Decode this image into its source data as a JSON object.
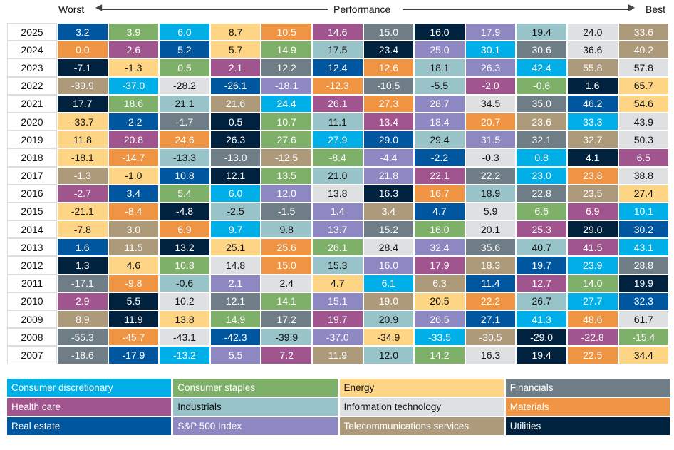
{
  "header": {
    "worst": "Worst",
    "performance": "Performance",
    "best": "Best"
  },
  "legend": [
    {
      "key": "CD",
      "label": "Consumer discretionary",
      "color": "#00aee8",
      "text": "#ffffff"
    },
    {
      "key": "CS",
      "label": "Consumer staples",
      "color": "#7fb069",
      "text": "#ffffff"
    },
    {
      "key": "EN",
      "label": "Energy",
      "color": "#fed584",
      "text": "#111111"
    },
    {
      "key": "FI",
      "label": "Financials",
      "color": "#6f7d86",
      "text": "#ffffff"
    },
    {
      "key": "HC",
      "label": "Health care",
      "color": "#a0558e",
      "text": "#ffffff"
    },
    {
      "key": "IN",
      "label": "Industrials",
      "color": "#98c3c9",
      "text": "#111111"
    },
    {
      "key": "IT",
      "label": "Information technology",
      "color": "#dfe0e2",
      "text": "#111111"
    },
    {
      "key": "MA",
      "label": "Materials",
      "color": "#ef9442",
      "text": "#ffffff"
    },
    {
      "key": "RE",
      "label": "Real estate",
      "color": "#0057a0",
      "text": "#ffffff"
    },
    {
      "key": "SP",
      "label": "S&P 500 Index",
      "color": "#8d88c1",
      "text": "#ffffff"
    },
    {
      "key": "TE",
      "label": "Telecommunications services",
      "color": "#ad9a7b",
      "text": "#ffffff"
    },
    {
      "key": "UT",
      "label": "Utilities",
      "color": "#00223f",
      "text": "#ffffff"
    }
  ],
  "chart_data": {
    "type": "table",
    "xlabel": "Performance",
    "rows": [
      {
        "year": "2025",
        "values": [
          3.2,
          3.9,
          6.0,
          8.7,
          10.5,
          14.6,
          15.0,
          16.0,
          17.9,
          19.4,
          24.0,
          33.6
        ],
        "sectors": [
          "RE",
          "CS",
          "CD",
          "EN",
          "MA",
          "HC",
          "FI",
          "UT",
          "SP",
          "IN",
          "IT",
          "TE"
        ]
      },
      {
        "year": "2024",
        "values": [
          0.0,
          2.6,
          5.2,
          5.7,
          14.9,
          17.5,
          23.4,
          25.0,
          30.1,
          30.6,
          36.6,
          40.2
        ],
        "sectors": [
          "MA",
          "HC",
          "RE",
          "EN",
          "CS",
          "IN",
          "UT",
          "SP",
          "CD",
          "FI",
          "IT",
          "TE"
        ]
      },
      {
        "year": "2023",
        "values": [
          -7.1,
          -1.3,
          0.5,
          2.1,
          12.2,
          12.4,
          12.6,
          18.1,
          26.3,
          42.4,
          55.8,
          57.8
        ],
        "sectors": [
          "UT",
          "EN",
          "CS",
          "HC",
          "FI",
          "RE",
          "MA",
          "IN",
          "SP",
          "CD",
          "TE",
          "IT"
        ]
      },
      {
        "year": "2022",
        "values": [
          -39.9,
          -37.0,
          -28.2,
          -26.1,
          -18.1,
          -12.3,
          -10.5,
          -5.5,
          -2.0,
          -0.6,
          1.6,
          65.7
        ],
        "sectors": [
          "TE",
          "CD",
          "IT",
          "RE",
          "SP",
          "MA",
          "FI",
          "IN",
          "HC",
          "CS",
          "UT",
          "EN"
        ]
      },
      {
        "year": "2021",
        "values": [
          17.7,
          18.6,
          21.1,
          21.6,
          24.4,
          26.1,
          27.3,
          28.7,
          34.5,
          35.0,
          46.2,
          54.6
        ],
        "sectors": [
          "UT",
          "CS",
          "IN",
          "TE",
          "CD",
          "HC",
          "MA",
          "SP",
          "IT",
          "FI",
          "RE",
          "EN"
        ]
      },
      {
        "year": "2020",
        "values": [
          -33.7,
          -2.2,
          -1.7,
          0.5,
          10.7,
          11.1,
          13.4,
          18.4,
          20.7,
          23.6,
          33.3,
          43.9
        ],
        "sectors": [
          "EN",
          "RE",
          "FI",
          "UT",
          "CS",
          "IN",
          "HC",
          "SP",
          "MA",
          "TE",
          "CD",
          "IT"
        ]
      },
      {
        "year": "2019",
        "values": [
          11.8,
          20.8,
          24.6,
          26.3,
          27.6,
          27.9,
          29.0,
          29.4,
          31.5,
          32.1,
          32.7,
          50.3
        ],
        "sectors": [
          "EN",
          "HC",
          "MA",
          "UT",
          "CS",
          "CD",
          "RE",
          "IN",
          "SP",
          "FI",
          "TE",
          "IT"
        ]
      },
      {
        "year": "2018",
        "values": [
          -18.1,
          -14.7,
          -13.3,
          -13.0,
          -12.5,
          -8.4,
          -4.4,
          -2.2,
          -0.3,
          0.8,
          4.1,
          6.5
        ],
        "sectors": [
          "EN",
          "MA",
          "IN",
          "FI",
          "TE",
          "CS",
          "SP",
          "RE",
          "IT",
          "CD",
          "UT",
          "HC"
        ]
      },
      {
        "year": "2017",
        "values": [
          -1.3,
          -1.0,
          10.8,
          12.1,
          13.5,
          21.0,
          21.8,
          22.1,
          22.2,
          23.0,
          23.8,
          38.8
        ],
        "sectors": [
          "TE",
          "EN",
          "RE",
          "UT",
          "CS",
          "IN",
          "SP",
          "HC",
          "FI",
          "CD",
          "MA",
          "IT"
        ]
      },
      {
        "year": "2016",
        "values": [
          -2.7,
          3.4,
          5.4,
          6.0,
          12.0,
          13.8,
          16.3,
          16.7,
          18.9,
          22.8,
          23.5,
          27.4
        ],
        "sectors": [
          "HC",
          "RE",
          "CS",
          "CD",
          "SP",
          "IT",
          "UT",
          "MA",
          "IN",
          "FI",
          "TE",
          "EN"
        ]
      },
      {
        "year": "2015",
        "values": [
          -21.1,
          -8.4,
          -4.8,
          -2.5,
          -1.5,
          1.4,
          3.4,
          4.7,
          5.9,
          6.6,
          6.9,
          10.1
        ],
        "sectors": [
          "EN",
          "MA",
          "UT",
          "IN",
          "FI",
          "SP",
          "TE",
          "RE",
          "IT",
          "CS",
          "HC",
          "CD"
        ]
      },
      {
        "year": "2014",
        "values": [
          -7.8,
          3.0,
          6.9,
          9.7,
          9.8,
          13.7,
          15.2,
          16.0,
          20.1,
          25.3,
          29.0,
          30.2
        ],
        "sectors": [
          "EN",
          "TE",
          "MA",
          "CD",
          "IN",
          "SP",
          "FI",
          "CS",
          "IT",
          "HC",
          "UT",
          "RE"
        ]
      },
      {
        "year": "2013",
        "values": [
          1.6,
          11.5,
          13.2,
          25.1,
          25.6,
          26.1,
          28.4,
          32.4,
          35.6,
          40.7,
          41.5,
          43.1
        ],
        "sectors": [
          "RE",
          "TE",
          "UT",
          "EN",
          "MA",
          "CS",
          "IT",
          "SP",
          "FI",
          "IN",
          "HC",
          "CD"
        ]
      },
      {
        "year": "2012",
        "values": [
          1.3,
          4.6,
          10.8,
          14.8,
          15.0,
          15.3,
          16.0,
          17.9,
          18.3,
          19.7,
          23.9,
          28.8
        ],
        "sectors": [
          "UT",
          "EN",
          "CS",
          "IT",
          "MA",
          "IN",
          "SP",
          "HC",
          "TE",
          "RE",
          "CD",
          "FI"
        ]
      },
      {
        "year": "2011",
        "values": [
          -17.1,
          -9.8,
          -0.6,
          2.1,
          2.4,
          4.7,
          6.1,
          6.3,
          11.4,
          12.7,
          14.0,
          19.9
        ],
        "sectors": [
          "FI",
          "MA",
          "IN",
          "SP",
          "IT",
          "EN",
          "CD",
          "TE",
          "RE",
          "HC",
          "CS",
          "UT"
        ]
      },
      {
        "year": "2010",
        "values": [
          2.9,
          5.5,
          10.2,
          12.1,
          14.1,
          15.1,
          19.0,
          20.5,
          22.2,
          26.7,
          27.7,
          32.3
        ],
        "sectors": [
          "HC",
          "UT",
          "IT",
          "FI",
          "CS",
          "SP",
          "TE",
          "EN",
          "MA",
          "IN",
          "CD",
          "RE"
        ]
      },
      {
        "year": "2009",
        "values": [
          8.9,
          11.9,
          13.8,
          14.9,
          17.2,
          19.7,
          20.9,
          26.5,
          27.1,
          41.3,
          48.6,
          61.7
        ],
        "sectors": [
          "TE",
          "UT",
          "EN",
          "CS",
          "FI",
          "HC",
          "IN",
          "SP",
          "RE",
          "CD",
          "MA",
          "IT"
        ]
      },
      {
        "year": "2008",
        "values": [
          -55.3,
          -45.7,
          -43.1,
          -42.3,
          -39.9,
          -37.0,
          -34.9,
          -33.5,
          -30.5,
          -29.0,
          -22.8,
          -15.4
        ],
        "sectors": [
          "FI",
          "MA",
          "IT",
          "RE",
          "IN",
          "SP",
          "EN",
          "CD",
          "TE",
          "UT",
          "HC",
          "CS"
        ]
      },
      {
        "year": "2007",
        "values": [
          -18.6,
          -17.9,
          -13.2,
          5.5,
          7.2,
          11.9,
          12.0,
          14.2,
          16.3,
          19.4,
          22.5,
          34.4
        ],
        "sectors": [
          "FI",
          "RE",
          "CD",
          "SP",
          "HC",
          "TE",
          "IN",
          "CS",
          "IT",
          "UT",
          "MA",
          "EN"
        ]
      }
    ]
  }
}
